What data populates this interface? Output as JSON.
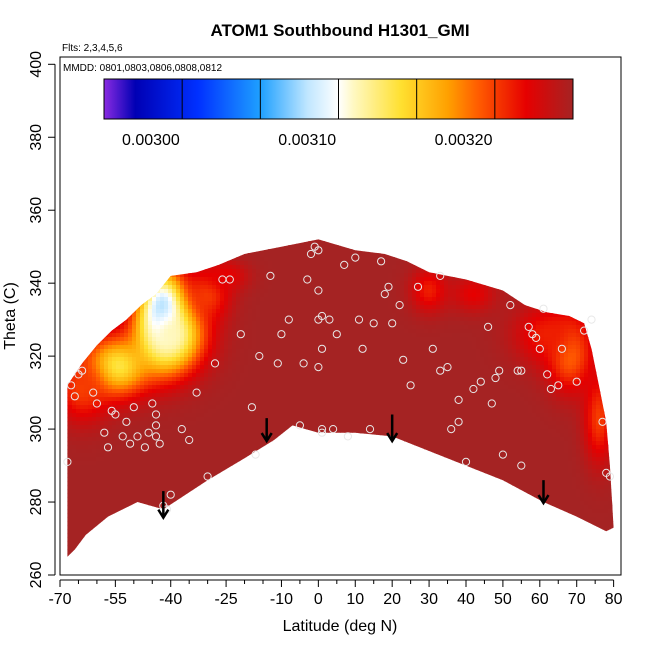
{
  "chart_data": {
    "type": "heatmap",
    "title": "ATOM1 Southbound H1301_GMI",
    "flights_label": "Flts: 2,3,4,5,6",
    "dates_label": "MMDD: 0801,0803,0806,0808,0812",
    "xlabel": "Latitude (deg N)",
    "ylabel": "Theta (C)",
    "xlim": [
      -70,
      82
    ],
    "ylim": [
      260,
      402
    ],
    "x_ticks": [
      -70,
      -55,
      -40,
      -25,
      -10,
      0,
      10,
      20,
      30,
      40,
      50,
      60,
      70,
      80
    ],
    "x_minor_ticks": [
      -65,
      -60,
      -50,
      -45,
      -35,
      -30,
      -20,
      -15,
      -5,
      5,
      15,
      25,
      35,
      45,
      55,
      65,
      75
    ],
    "y_ticks": [
      260,
      280,
      300,
      320,
      340,
      360,
      380,
      400
    ],
    "colorbar": {
      "range": [
        0.00297,
        0.00327
      ],
      "tick_values": [
        0.003,
        0.0031,
        0.0032
      ],
      "tick_labels": [
        "0.00300",
        "0.00310",
        "0.00320"
      ],
      "divisions": [
        0.00297,
        0.00302,
        0.00307,
        0.00312,
        0.00317,
        0.00322,
        0.00327
      ],
      "stops": [
        {
          "value": 0.00297,
          "color": "#8a2be2"
        },
        {
          "value": 0.00299,
          "color": "#0000b4"
        },
        {
          "value": 0.00303,
          "color": "#0030ff"
        },
        {
          "value": 0.00307,
          "color": "#1ea0ff"
        },
        {
          "value": 0.0031,
          "color": "#bfe6ff"
        },
        {
          "value": 0.00312,
          "color": "#ffffff"
        },
        {
          "value": 0.00313,
          "color": "#fff8c0"
        },
        {
          "value": 0.00316,
          "color": "#ffe030"
        },
        {
          "value": 0.00319,
          "color": "#ffa000"
        },
        {
          "value": 0.00321,
          "color": "#ff5a00"
        },
        {
          "value": 0.00324,
          "color": "#e60000"
        },
        {
          "value": 0.00327,
          "color": "#a52323"
        }
      ]
    },
    "field": {
      "base_value": 0.00327,
      "upper_boundary": [
        [
          -68,
          312
        ],
        [
          -64,
          318
        ],
        [
          -60,
          323
        ],
        [
          -56,
          327
        ],
        [
          -52,
          330
        ],
        [
          -48,
          334
        ],
        [
          -44,
          337
        ],
        [
          -40,
          342
        ],
        [
          -33,
          343
        ],
        [
          -27,
          345
        ],
        [
          -20,
          348
        ],
        [
          -10,
          350
        ],
        [
          0,
          352
        ],
        [
          10,
          349
        ],
        [
          18,
          348
        ],
        [
          24,
          346
        ],
        [
          30,
          343
        ],
        [
          40,
          341
        ],
        [
          50,
          338
        ],
        [
          56,
          334
        ],
        [
          62,
          332
        ],
        [
          68,
          331
        ],
        [
          72,
          329
        ],
        [
          74,
          322
        ],
        [
          76,
          312
        ],
        [
          78,
          302
        ],
        [
          79,
          290
        ],
        [
          80,
          273
        ]
      ],
      "lower_boundary": [
        [
          80,
          273
        ],
        [
          78,
          272
        ],
        [
          70,
          276
        ],
        [
          61,
          280
        ],
        [
          50,
          286
        ],
        [
          40,
          290
        ],
        [
          30,
          294
        ],
        [
          20,
          298
        ],
        [
          10,
          299
        ],
        [
          0,
          299
        ],
        [
          -7,
          301
        ],
        [
          -12,
          297
        ],
        [
          -20,
          292
        ],
        [
          -30,
          286
        ],
        [
          -42,
          278
        ],
        [
          -49,
          280
        ],
        [
          -57,
          276
        ],
        [
          -63,
          271
        ],
        [
          -66,
          267
        ],
        [
          -68,
          265
        ],
        [
          -68,
          312
        ]
      ],
      "anomalies": [
        {
          "lat": -42,
          "theta": 331,
          "value": 0.00305,
          "sx": 6,
          "sy": 11
        },
        {
          "lat": -55,
          "theta": 317,
          "value": 0.00315,
          "sx": 9,
          "sy": 8
        },
        {
          "lat": -40,
          "theta": 326,
          "value": 0.00313,
          "sx": 9,
          "sy": 10
        },
        {
          "lat": -64,
          "theta": 311,
          "value": 0.00322,
          "sx": 7,
          "sy": 9
        },
        {
          "lat": -30,
          "theta": 337,
          "value": 0.00322,
          "sx": 6,
          "sy": 7
        },
        {
          "lat": 68,
          "theta": 321,
          "value": 0.0032,
          "sx": 6,
          "sy": 10
        },
        {
          "lat": 62,
          "theta": 326,
          "value": 0.00323,
          "sx": 9,
          "sy": 8
        },
        {
          "lat": 76,
          "theta": 303,
          "value": 0.00322,
          "sx": 4,
          "sy": 12
        },
        {
          "lat": -25,
          "theta": 342,
          "value": 0.00324,
          "sx": 6,
          "sy": 4
        },
        {
          "lat": 30,
          "theta": 338,
          "value": 0.00323,
          "sx": 5,
          "sy": 6
        },
        {
          "lat": 42,
          "theta": 337,
          "value": 0.00324,
          "sx": 6,
          "sy": 5
        }
      ]
    },
    "points": [
      [
        -68,
        291
      ],
      [
        -67,
        312
      ],
      [
        -66,
        309
      ],
      [
        -65,
        315
      ],
      [
        -64,
        316
      ],
      [
        -61,
        310
      ],
      [
        -60,
        307
      ],
      [
        -58,
        299
      ],
      [
        -57,
        295
      ],
      [
        -56,
        305
      ],
      [
        -55,
        304
      ],
      [
        -53,
        298
      ],
      [
        -52,
        302
      ],
      [
        -51,
        296
      ],
      [
        -50,
        306
      ],
      [
        -49,
        298
      ],
      [
        -47,
        295
      ],
      [
        -46,
        299
      ],
      [
        -45,
        307
      ],
      [
        -44,
        304
      ],
      [
        -44,
        301
      ],
      [
        -43,
        296
      ],
      [
        -44,
        298
      ],
      [
        -42,
        279
      ],
      [
        -41,
        278
      ],
      [
        -40,
        282
      ],
      [
        -37,
        300
      ],
      [
        -35,
        297
      ],
      [
        -33,
        310
      ],
      [
        -30,
        287
      ],
      [
        -28,
        318
      ],
      [
        -26,
        341
      ],
      [
        -24,
        341
      ],
      [
        -21,
        326
      ],
      [
        -18,
        306
      ],
      [
        -17,
        293
      ],
      [
        -16,
        320
      ],
      [
        -13,
        342
      ],
      [
        -11,
        318
      ],
      [
        -10,
        326
      ],
      [
        -8,
        330
      ],
      [
        -5,
        301
      ],
      [
        -4,
        318
      ],
      [
        -3,
        341
      ],
      [
        -2,
        348
      ],
      [
        -1,
        350
      ],
      [
        0,
        349
      ],
      [
        1,
        331
      ],
      [
        1,
        322
      ],
      [
        0,
        317
      ],
      [
        1,
        300
      ],
      [
        1,
        299
      ],
      [
        0,
        338
      ],
      [
        0,
        330
      ],
      [
        3,
        330
      ],
      [
        4,
        300
      ],
      [
        5,
        326
      ],
      [
        7,
        345
      ],
      [
        8,
        298
      ],
      [
        10,
        347
      ],
      [
        11,
        330
      ],
      [
        12,
        322
      ],
      [
        14,
        300
      ],
      [
        15,
        329
      ],
      [
        17,
        346
      ],
      [
        18,
        337
      ],
      [
        19,
        339
      ],
      [
        20,
        329
      ],
      [
        22,
        334
      ],
      [
        23,
        319
      ],
      [
        25,
        312
      ],
      [
        27,
        339
      ],
      [
        31,
        322
      ],
      [
        33,
        316
      ],
      [
        33,
        342
      ],
      [
        35,
        317
      ],
      [
        36,
        300
      ],
      [
        38,
        308
      ],
      [
        38,
        302
      ],
      [
        40,
        291
      ],
      [
        42,
        311
      ],
      [
        44,
        313
      ],
      [
        46,
        328
      ],
      [
        47,
        307
      ],
      [
        48,
        314
      ],
      [
        49,
        316
      ],
      [
        50,
        293
      ],
      [
        52,
        334
      ],
      [
        54,
        316
      ],
      [
        55,
        290
      ],
      [
        55,
        316
      ],
      [
        57,
        328
      ],
      [
        58,
        326
      ],
      [
        59,
        325
      ],
      [
        60,
        322
      ],
      [
        61,
        333
      ],
      [
        62,
        315
      ],
      [
        63,
        311
      ],
      [
        65,
        312
      ],
      [
        66,
        322
      ],
      [
        70,
        313
      ],
      [
        72,
        327
      ],
      [
        74,
        330
      ],
      [
        77,
        302
      ],
      [
        78,
        288
      ],
      [
        79,
        287
      ]
    ],
    "arrows": [
      {
        "lat": -42,
        "from": 283,
        "to": 276
      },
      {
        "lat": -14,
        "from": 303,
        "to": 297
      },
      {
        "lat": 20,
        "from": 304,
        "to": 297
      },
      {
        "lat": 61,
        "from": 286,
        "to": 280
      }
    ]
  }
}
